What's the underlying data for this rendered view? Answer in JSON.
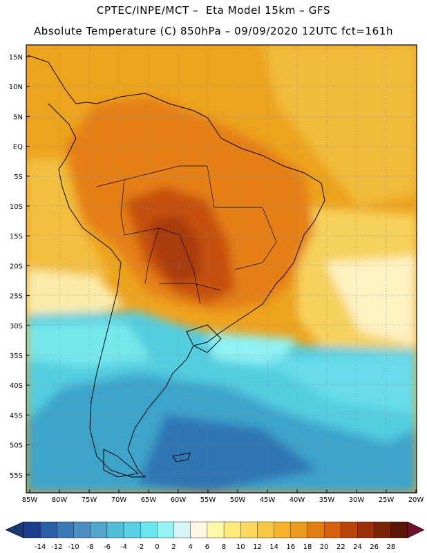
{
  "header": {
    "line1": "CPTEC/INPE/MCT –  Eta Model 15km – GFS",
    "line2": "Absolute Temperature (C) 850hPa – 09/09/2020 12UTC fct=161h"
  },
  "map": {
    "lat_labels": [
      "15N",
      "10N",
      "5N",
      "EQ",
      "5S",
      "10S",
      "15S",
      "20S",
      "25S",
      "30S",
      "35S",
      "40S",
      "45S",
      "50S",
      "55S"
    ],
    "lon_labels": [
      "85W",
      "80W",
      "75W",
      "70W",
      "65W",
      "60W",
      "55W",
      "50W",
      "45W",
      "40W",
      "35W",
      "30W",
      "25W",
      "20W"
    ]
  },
  "colorbar": {
    "labels": [
      "-14",
      "-12",
      "-10",
      "-8",
      "-6",
      "-4",
      "-2",
      "0",
      "2",
      "4",
      "6",
      "8",
      "10",
      "12",
      "14",
      "16",
      "18",
      "20",
      "22",
      "24",
      "26",
      "28"
    ],
    "colors": [
      "#1a3d8c",
      "#2a5ea8",
      "#3a78b8",
      "#4a90c4",
      "#4fa6cc",
      "#50bcd6",
      "#56d0e2",
      "#6ae6ee",
      "#96f4f4",
      "#d6f6f6",
      "#fff8e4",
      "#fff7a8",
      "#ffe97a",
      "#fdd85c",
      "#f7c743",
      "#f4b32b",
      "#eb9a1d",
      "#e27d12",
      "#d45f0c",
      "#b8440a",
      "#9a2f07",
      "#7a2206",
      "#5c1505"
    ],
    "under_color": "#1a3870",
    "over_color": "#6e0f2c"
  }
}
